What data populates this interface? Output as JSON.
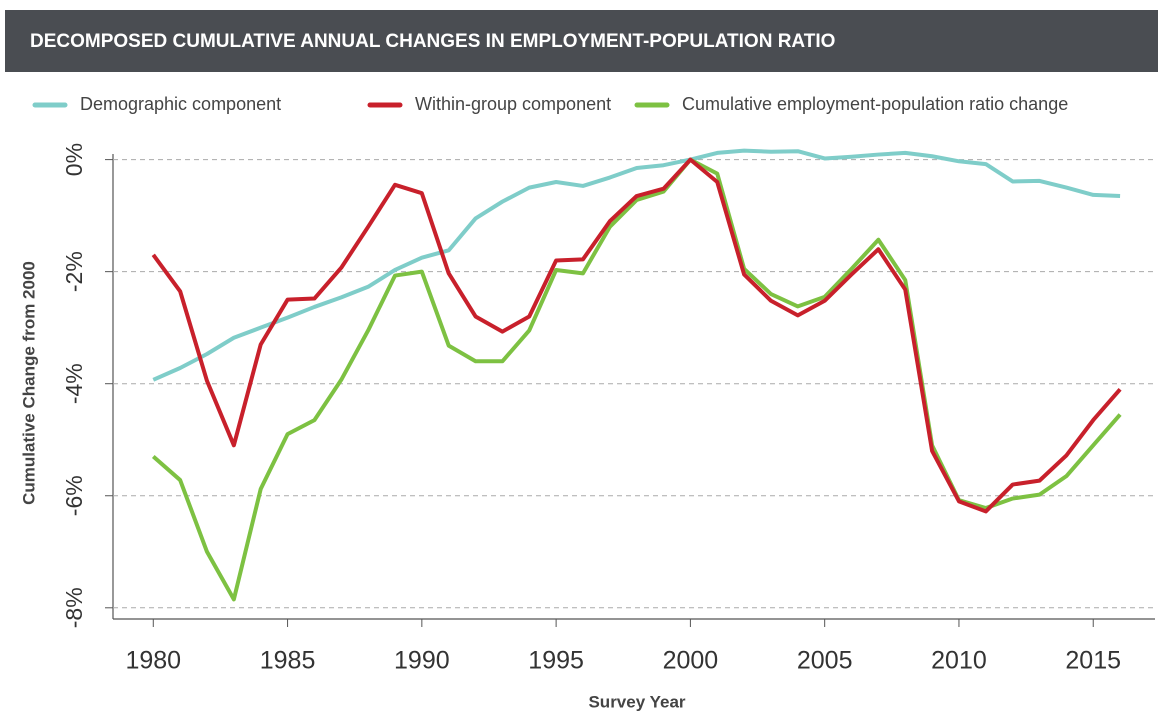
{
  "chart_data": {
    "type": "line",
    "title": "DECOMPOSED CUMULATIVE ANNUAL CHANGES IN EMPLOYMENT-POPULATION RATIO",
    "x_label": "Survey Year",
    "y_label": "Cumulative Change from 2000",
    "x": [
      1980,
      1981,
      1982,
      1983,
      1984,
      1985,
      1986,
      1987,
      1988,
      1989,
      1990,
      1991,
      1992,
      1993,
      1994,
      1995,
      1996,
      1997,
      1998,
      1999,
      2000,
      2001,
      2002,
      2003,
      2004,
      2005,
      2006,
      2007,
      2008,
      2009,
      2010,
      2011,
      2012,
      2013,
      2014,
      2015,
      2016
    ],
    "series": [
      {
        "name": "Demographic component",
        "color": "#7fcdc9",
        "values": [
          -3.93,
          -3.72,
          -3.47,
          -3.18,
          -3.0,
          -2.82,
          -2.63,
          -2.46,
          -2.27,
          -1.97,
          -1.75,
          -1.62,
          -1.05,
          -0.75,
          -0.5,
          -0.4,
          -0.47,
          -0.32,
          -0.15,
          -0.1,
          0,
          0.12,
          0.16,
          0.14,
          0.15,
          0.02,
          0.05,
          0.09,
          0.12,
          0.06,
          -0.03,
          -0.08,
          -0.39,
          -0.38,
          -0.5,
          -0.63,
          -0.65
        ]
      },
      {
        "name": "Within-group component",
        "color": "#c8202b",
        "values": [
          -1.7,
          -2.35,
          -3.95,
          -5.1,
          -3.3,
          -2.5,
          -2.48,
          -1.93,
          -1.2,
          -0.45,
          -0.6,
          -2.03,
          -2.8,
          -3.07,
          -2.8,
          -1.8,
          -1.78,
          -1.1,
          -0.65,
          -0.52,
          0,
          -0.4,
          -2.05,
          -2.52,
          -2.78,
          -2.52,
          -2.05,
          -1.6,
          -2.32,
          -5.2,
          -6.1,
          -6.28,
          -5.8,
          -5.73,
          -5.28,
          -4.65,
          -4.1
        ]
      },
      {
        "name": "Cumulative employment-population ratio change",
        "color": "#7dc142",
        "values": [
          -5.3,
          -5.72,
          -7.0,
          -7.85,
          -5.88,
          -4.9,
          -4.65,
          -3.93,
          -3.05,
          -2.07,
          -2.0,
          -3.32,
          -3.6,
          -3.6,
          -3.05,
          -1.97,
          -2.03,
          -1.2,
          -0.72,
          -0.57,
          0,
          -0.25,
          -1.95,
          -2.4,
          -2.62,
          -2.45,
          -1.95,
          -1.43,
          -2.15,
          -5.1,
          -6.08,
          -6.22,
          -6.05,
          -5.98,
          -5.65,
          -5.1,
          -4.55
        ]
      }
    ],
    "xlim": [
      1978.5,
      2017.3
    ],
    "xticks": [
      1980,
      1985,
      1990,
      1995,
      2000,
      2005,
      2010,
      2015
    ],
    "ylim": [
      -8.2,
      0.1
    ],
    "yticks": [
      {
        "value": 0,
        "label": "0%"
      },
      {
        "value": -2,
        "label": "-2%"
      },
      {
        "value": -4,
        "label": "-4%"
      },
      {
        "value": -6,
        "label": "-6%"
      },
      {
        "value": -8,
        "label": "-8%"
      }
    ],
    "grid": true,
    "legend": "top"
  }
}
